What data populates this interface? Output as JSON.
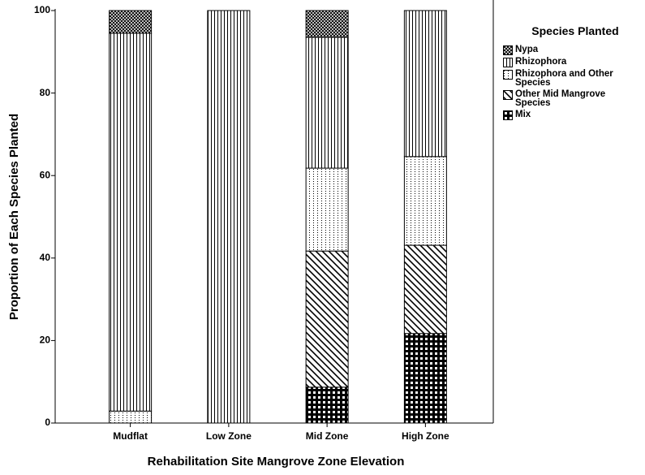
{
  "chart_data": {
    "type": "stacked_bar",
    "x_label": "Rehabilitation Site Mangrove Zone Elevation",
    "y_label": "Proportion of Each Species Planted",
    "legend_title": "Species Planted",
    "categories": [
      "Mudflat",
      "Low Zone",
      "Mid Zone",
      "High Zone"
    ],
    "series": [
      {
        "name": "Nypa",
        "color": "#000000",
        "pattern": "crosshatch",
        "values": [
          5.5,
          0,
          6.5,
          0
        ]
      },
      {
        "name": "Rhizophora",
        "color": "#000000",
        "pattern": "vertical",
        "values": [
          91.6,
          100,
          31.7,
          35.4
        ]
      },
      {
        "name": "Rhizophora and Other Species",
        "color": "#000000",
        "pattern": "dots",
        "values": [
          2.9,
          0,
          20.1,
          21.5
        ]
      },
      {
        "name": "Other Mid Mangrove Species",
        "color": "#000000",
        "pattern": "diagonal",
        "values": [
          0,
          0,
          33.0,
          21.4
        ]
      },
      {
        "name": "Mix",
        "color": "#000000",
        "pattern": "grid",
        "values": [
          0,
          0,
          8.7,
          21.7
        ]
      }
    ],
    "ylim": [
      0,
      100
    ],
    "yticks": [
      0,
      20,
      40,
      60,
      80,
      100
    ],
    "legend_position": "upper right"
  }
}
